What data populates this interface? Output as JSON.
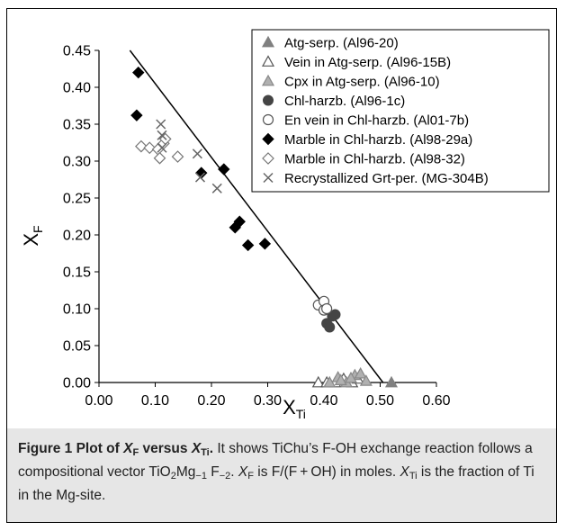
{
  "chart_data": {
    "type": "scatter",
    "title": "",
    "xlabel": "X",
    "xlabel_sub": "Ti",
    "ylabel": "X",
    "ylabel_sub": "F",
    "xlim": [
      0,
      0.6
    ],
    "ylim": [
      0,
      0.45
    ],
    "x_ticks": [
      "0.00",
      "0.10",
      "0.20",
      "0.30",
      "0.40",
      "0.50",
      "0.60"
    ],
    "y_ticks": [
      "0.00",
      "0.05",
      "0.10",
      "0.15",
      "0.20",
      "0.25",
      "0.30",
      "0.35",
      "0.40",
      "0.45"
    ],
    "grid": false,
    "legend_position": "top-right",
    "trend_line": {
      "x": [
        0.055,
        0.505
      ],
      "y": [
        0.45,
        0.0
      ]
    },
    "series": [
      {
        "name": "Atg-serp. (Al96-20)",
        "marker": "triangle-filled",
        "color": "#888888",
        "points": [
          [
            0.52,
            0.0
          ]
        ]
      },
      {
        "name": "Vein in Atg-serp. (Al96-15B)",
        "marker": "triangle-open",
        "color": "#666666",
        "points": [
          [
            0.39,
            0.0
          ],
          [
            0.405,
            0.0
          ],
          [
            0.42,
            0.0
          ],
          [
            0.435,
            0.005
          ],
          [
            0.45,
            0.0
          ],
          [
            0.46,
            0.005
          ]
        ]
      },
      {
        "name": "Cpx in Atg-serp. (Al96-10)",
        "marker": "triangle-gray",
        "color": "#aaaaaa",
        "points": [
          [
            0.41,
            0.0
          ],
          [
            0.425,
            0.007
          ],
          [
            0.44,
            0.0
          ],
          [
            0.455,
            0.01
          ],
          [
            0.465,
            0.012
          ],
          [
            0.475,
            0.002
          ],
          [
            0.43,
            0.003
          ],
          [
            0.448,
            0.006
          ]
        ]
      },
      {
        "name": "Chl-harzb. (Al96-1c)",
        "marker": "circle-filled",
        "color": "#555555",
        "points": [
          [
            0.405,
            0.08
          ],
          [
            0.41,
            0.075
          ],
          [
            0.415,
            0.09
          ],
          [
            0.42,
            0.092
          ]
        ]
      },
      {
        "name": "En vein in Chl-harzb. (Al01-7b)",
        "marker": "circle-open",
        "color": "#555555",
        "points": [
          [
            0.39,
            0.105
          ],
          [
            0.4,
            0.11
          ],
          [
            0.4,
            0.098
          ],
          [
            0.405,
            0.1
          ]
        ]
      },
      {
        "name": "Marble in Chl-harzb. (Al98-29a)",
        "marker": "diamond-filled",
        "color": "#000000",
        "points": [
          [
            0.07,
            0.42
          ],
          [
            0.067,
            0.362
          ],
          [
            0.182,
            0.284
          ],
          [
            0.222,
            0.289
          ],
          [
            0.242,
            0.21
          ],
          [
            0.25,
            0.218
          ],
          [
            0.265,
            0.186
          ],
          [
            0.295,
            0.188
          ]
        ]
      },
      {
        "name": "Marble in Chl-harzb. (Al98-32)",
        "marker": "diamond-open",
        "color": "#777777",
        "points": [
          [
            0.075,
            0.32
          ],
          [
            0.09,
            0.318
          ],
          [
            0.105,
            0.316
          ],
          [
            0.108,
            0.304
          ],
          [
            0.115,
            0.324
          ],
          [
            0.118,
            0.33
          ],
          [
            0.14,
            0.306
          ]
        ]
      },
      {
        "name": "Recrystallized Grt-per. (MG-304B)",
        "marker": "x",
        "color": "#666666",
        "points": [
          [
            0.11,
            0.35
          ],
          [
            0.112,
            0.335
          ],
          [
            0.112,
            0.318
          ],
          [
            0.175,
            0.31
          ],
          [
            0.18,
            0.278
          ],
          [
            0.21,
            0.263
          ]
        ]
      }
    ]
  },
  "caption": {
    "figure_label": "Figure 1 Plot of ",
    "figure_label_xf": "X",
    "figure_label_xf_sub": "F",
    "figure_label_versus": " versus ",
    "figure_label_xti": "X",
    "figure_label_xti_sub": "Ti",
    "figure_label_end": ".",
    "line1": " It shows TiChu’s F-OH exchange reaction follows a compositional vector TiO",
    "sub_2a": "2",
    "mid1": "Mg",
    "sub_m1": "−1",
    "mid2": " F",
    "sub_m2": "−2",
    "mid3": ". ",
    "xf": "X",
    "xf_sub": "F",
    "mid4": " is F/(F + OH) in moles. ",
    "xti": "X",
    "xti_sub": "Ti",
    "mid5": " is the fraction of Ti in the Mg-site."
  }
}
